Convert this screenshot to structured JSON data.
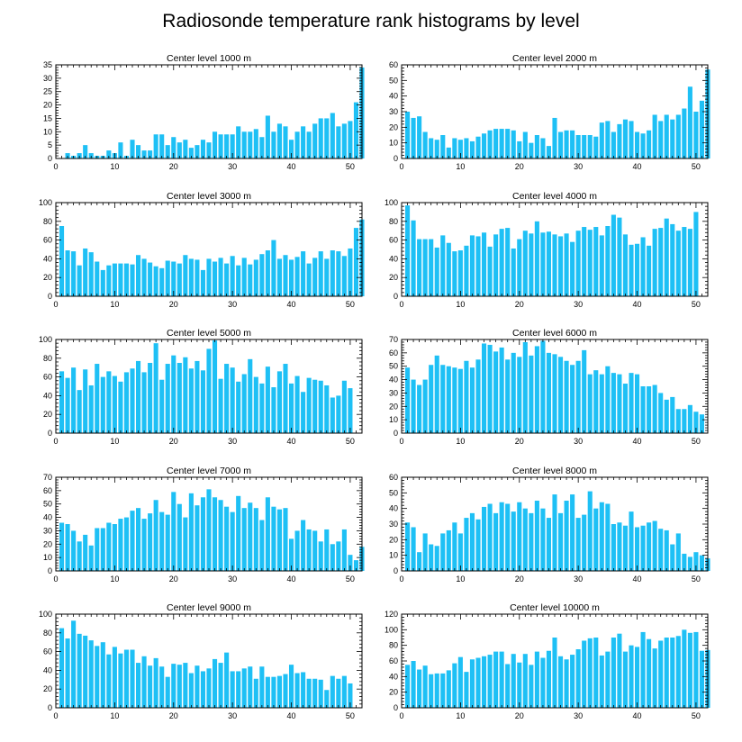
{
  "chart_data": {
    "type": "bar",
    "title": "Radiosonde temperature rank histograms by level",
    "colors": {
      "bar": "#1ec0f5",
      "frame": "#000000",
      "background": "#ffffff"
    },
    "panels": [
      {
        "title": "Center level 1000 m",
        "xlim": [
          0,
          52
        ],
        "ylim": [
          0,
          35
        ],
        "xticks": [
          0,
          10,
          20,
          30,
          40,
          50
        ],
        "yticks": [
          0,
          5,
          10,
          15,
          20,
          25,
          30,
          35
        ],
        "values": [
          0,
          2,
          1,
          2,
          5,
          2,
          1,
          1,
          3,
          2,
          6,
          1,
          7,
          5,
          3,
          3,
          9,
          9,
          5,
          8,
          6,
          7,
          4,
          5,
          7,
          6,
          10,
          9,
          9,
          9,
          12,
          10,
          10,
          11,
          8,
          16,
          10,
          13,
          12,
          7,
          10,
          12,
          10,
          13,
          15,
          15,
          17,
          12,
          13,
          14,
          21,
          34
        ]
      },
      {
        "title": "Center level 2000 m",
        "xlim": [
          0,
          52
        ],
        "ylim": [
          0,
          60
        ],
        "xticks": [
          0,
          10,
          20,
          30,
          40,
          50
        ],
        "yticks": [
          0,
          10,
          20,
          30,
          40,
          50,
          60
        ],
        "values": [
          30,
          26,
          27,
          17,
          13,
          12,
          15,
          7,
          13,
          12,
          13,
          11,
          14,
          16,
          18,
          19,
          19,
          19,
          18,
          11,
          17,
          10,
          15,
          13,
          8,
          26,
          17,
          18,
          18,
          15,
          15,
          15,
          14,
          23,
          24,
          17,
          22,
          25,
          24,
          17,
          16,
          18,
          28,
          24,
          28,
          25,
          28,
          32,
          46,
          30,
          37,
          57
        ]
      },
      {
        "title": "Center level 3000 m",
        "xlim": [
          0,
          52
        ],
        "ylim": [
          0,
          100
        ],
        "xticks": [
          0,
          10,
          20,
          30,
          40,
          50
        ],
        "yticks": [
          0,
          20,
          40,
          60,
          80,
          100
        ],
        "values": [
          75,
          49,
          48,
          33,
          51,
          47,
          37,
          28,
          33,
          35,
          35,
          35,
          34,
          44,
          40,
          36,
          32,
          30,
          38,
          37,
          35,
          44,
          40,
          39,
          28,
          40,
          37,
          41,
          35,
          43,
          33,
          41,
          34,
          39,
          45,
          49,
          60,
          40,
          44,
          39,
          42,
          48,
          35,
          41,
          48,
          40,
          49,
          48,
          43,
          51,
          73,
          82
        ]
      },
      {
        "title": "Center level 4000 m",
        "xlim": [
          0,
          52
        ],
        "ylim": [
          0,
          100
        ],
        "xticks": [
          0,
          10,
          20,
          30,
          40,
          50
        ],
        "yticks": [
          0,
          20,
          40,
          60,
          80,
          100
        ],
        "values": [
          97,
          81,
          61,
          61,
          61,
          52,
          65,
          57,
          48,
          49,
          54,
          65,
          64,
          68,
          53,
          66,
          72,
          73,
          51,
          61,
          70,
          67,
          80,
          68,
          69,
          66,
          64,
          67,
          58,
          70,
          74,
          71,
          74,
          65,
          75,
          87,
          84,
          66,
          55,
          56,
          63,
          54,
          72,
          73,
          83,
          77,
          70,
          74,
          72,
          90
        ]
      },
      {
        "title": "Center level 5000 m",
        "xlim": [
          0,
          52
        ],
        "ylim": [
          0,
          100
        ],
        "xticks": [
          0,
          10,
          20,
          30,
          40,
          50
        ],
        "yticks": [
          0,
          20,
          40,
          60,
          80,
          100
        ],
        "values": [
          66,
          59,
          70,
          46,
          68,
          51,
          74,
          60,
          66,
          61,
          55,
          65,
          69,
          77,
          65,
          75,
          96,
          57,
          74,
          83,
          75,
          81,
          69,
          77,
          67,
          90,
          99,
          58,
          74,
          70,
          55,
          63,
          79,
          60,
          53,
          71,
          49,
          66,
          74,
          53,
          61,
          44,
          59,
          57,
          56,
          51,
          38,
          40,
          56,
          48
        ]
      },
      {
        "title": "Center level 6000 m",
        "xlim": [
          0,
          52
        ],
        "ylim": [
          0,
          70
        ],
        "xticks": [
          0,
          10,
          20,
          30,
          40,
          50
        ],
        "yticks": [
          0,
          10,
          20,
          30,
          40,
          50,
          60,
          70
        ],
        "values": [
          49,
          40,
          36,
          40,
          51,
          58,
          51,
          50,
          49,
          48,
          54,
          49,
          55,
          67,
          66,
          61,
          64,
          55,
          60,
          57,
          68,
          58,
          65,
          69,
          60,
          59,
          57,
          54,
          51,
          54,
          62,
          44,
          47,
          44,
          50,
          45,
          44,
          37,
          45,
          44,
          35,
          35,
          36,
          30,
          25,
          27,
          18,
          18,
          21,
          16,
          14
        ]
      },
      {
        "title": "Center level 7000 m",
        "xlim": [
          0,
          52
        ],
        "ylim": [
          0,
          70
        ],
        "xticks": [
          0,
          10,
          20,
          30,
          40,
          50
        ],
        "yticks": [
          0,
          10,
          20,
          30,
          40,
          50,
          60,
          70
        ],
        "values": [
          36,
          35,
          30,
          22,
          27,
          19,
          32,
          32,
          36,
          35,
          39,
          40,
          45,
          47,
          39,
          43,
          53,
          44,
          42,
          59,
          50,
          40,
          58,
          49,
          55,
          61,
          55,
          53,
          48,
          44,
          56,
          47,
          51,
          47,
          38,
          55,
          48,
          46,
          47,
          24,
          30,
          38,
          31,
          30,
          22,
          31,
          20,
          22,
          31,
          12,
          8,
          18
        ]
      },
      {
        "title": "Center level 8000 m",
        "xlim": [
          0,
          52
        ],
        "ylim": [
          0,
          60
        ],
        "xticks": [
          0,
          10,
          20,
          30,
          40,
          50
        ],
        "yticks": [
          0,
          10,
          20,
          30,
          40,
          50,
          60
        ],
        "values": [
          31,
          28,
          12,
          24,
          17,
          16,
          24,
          26,
          31,
          24,
          34,
          37,
          33,
          41,
          43,
          37,
          44,
          43,
          38,
          44,
          40,
          37,
          45,
          40,
          34,
          49,
          37,
          45,
          49,
          34,
          36,
          51,
          40,
          44,
          43,
          30,
          31,
          29,
          38,
          28,
          29,
          31,
          32,
          27,
          26,
          17,
          24,
          11,
          9,
          12,
          10,
          8
        ]
      },
      {
        "title": "Center level 9000 m",
        "xlim": [
          0,
          52
        ],
        "ylim": [
          0,
          100
        ],
        "xticks": [
          0,
          10,
          20,
          30,
          40,
          50
        ],
        "yticks": [
          0,
          20,
          40,
          60,
          80,
          100
        ],
        "values": [
          85,
          74,
          93,
          79,
          77,
          72,
          66,
          70,
          57,
          65,
          58,
          62,
          62,
          48,
          55,
          45,
          53,
          44,
          33,
          47,
          46,
          48,
          37,
          45,
          39,
          42,
          52,
          48,
          59,
          39,
          39,
          42,
          44,
          31,
          44,
          33,
          33,
          34,
          36,
          46,
          37,
          38,
          31,
          31,
          30,
          19,
          34,
          31,
          34,
          26
        ]
      },
      {
        "title": "Center level 10000 m",
        "xlim": [
          0,
          52
        ],
        "ylim": [
          0,
          120
        ],
        "xticks": [
          0,
          10,
          20,
          30,
          40,
          50
        ],
        "yticks": [
          0,
          20,
          40,
          60,
          80,
          100,
          120
        ],
        "values": [
          55,
          60,
          49,
          54,
          43,
          44,
          44,
          48,
          57,
          65,
          46,
          62,
          64,
          66,
          68,
          72,
          72,
          56,
          69,
          58,
          69,
          55,
          72,
          64,
          73,
          90,
          66,
          62,
          68,
          75,
          86,
          89,
          90,
          67,
          72,
          90,
          95,
          72,
          80,
          78,
          97,
          88,
          76,
          86,
          90,
          90,
          92,
          100,
          96,
          97,
          73,
          74
        ]
      }
    ]
  }
}
